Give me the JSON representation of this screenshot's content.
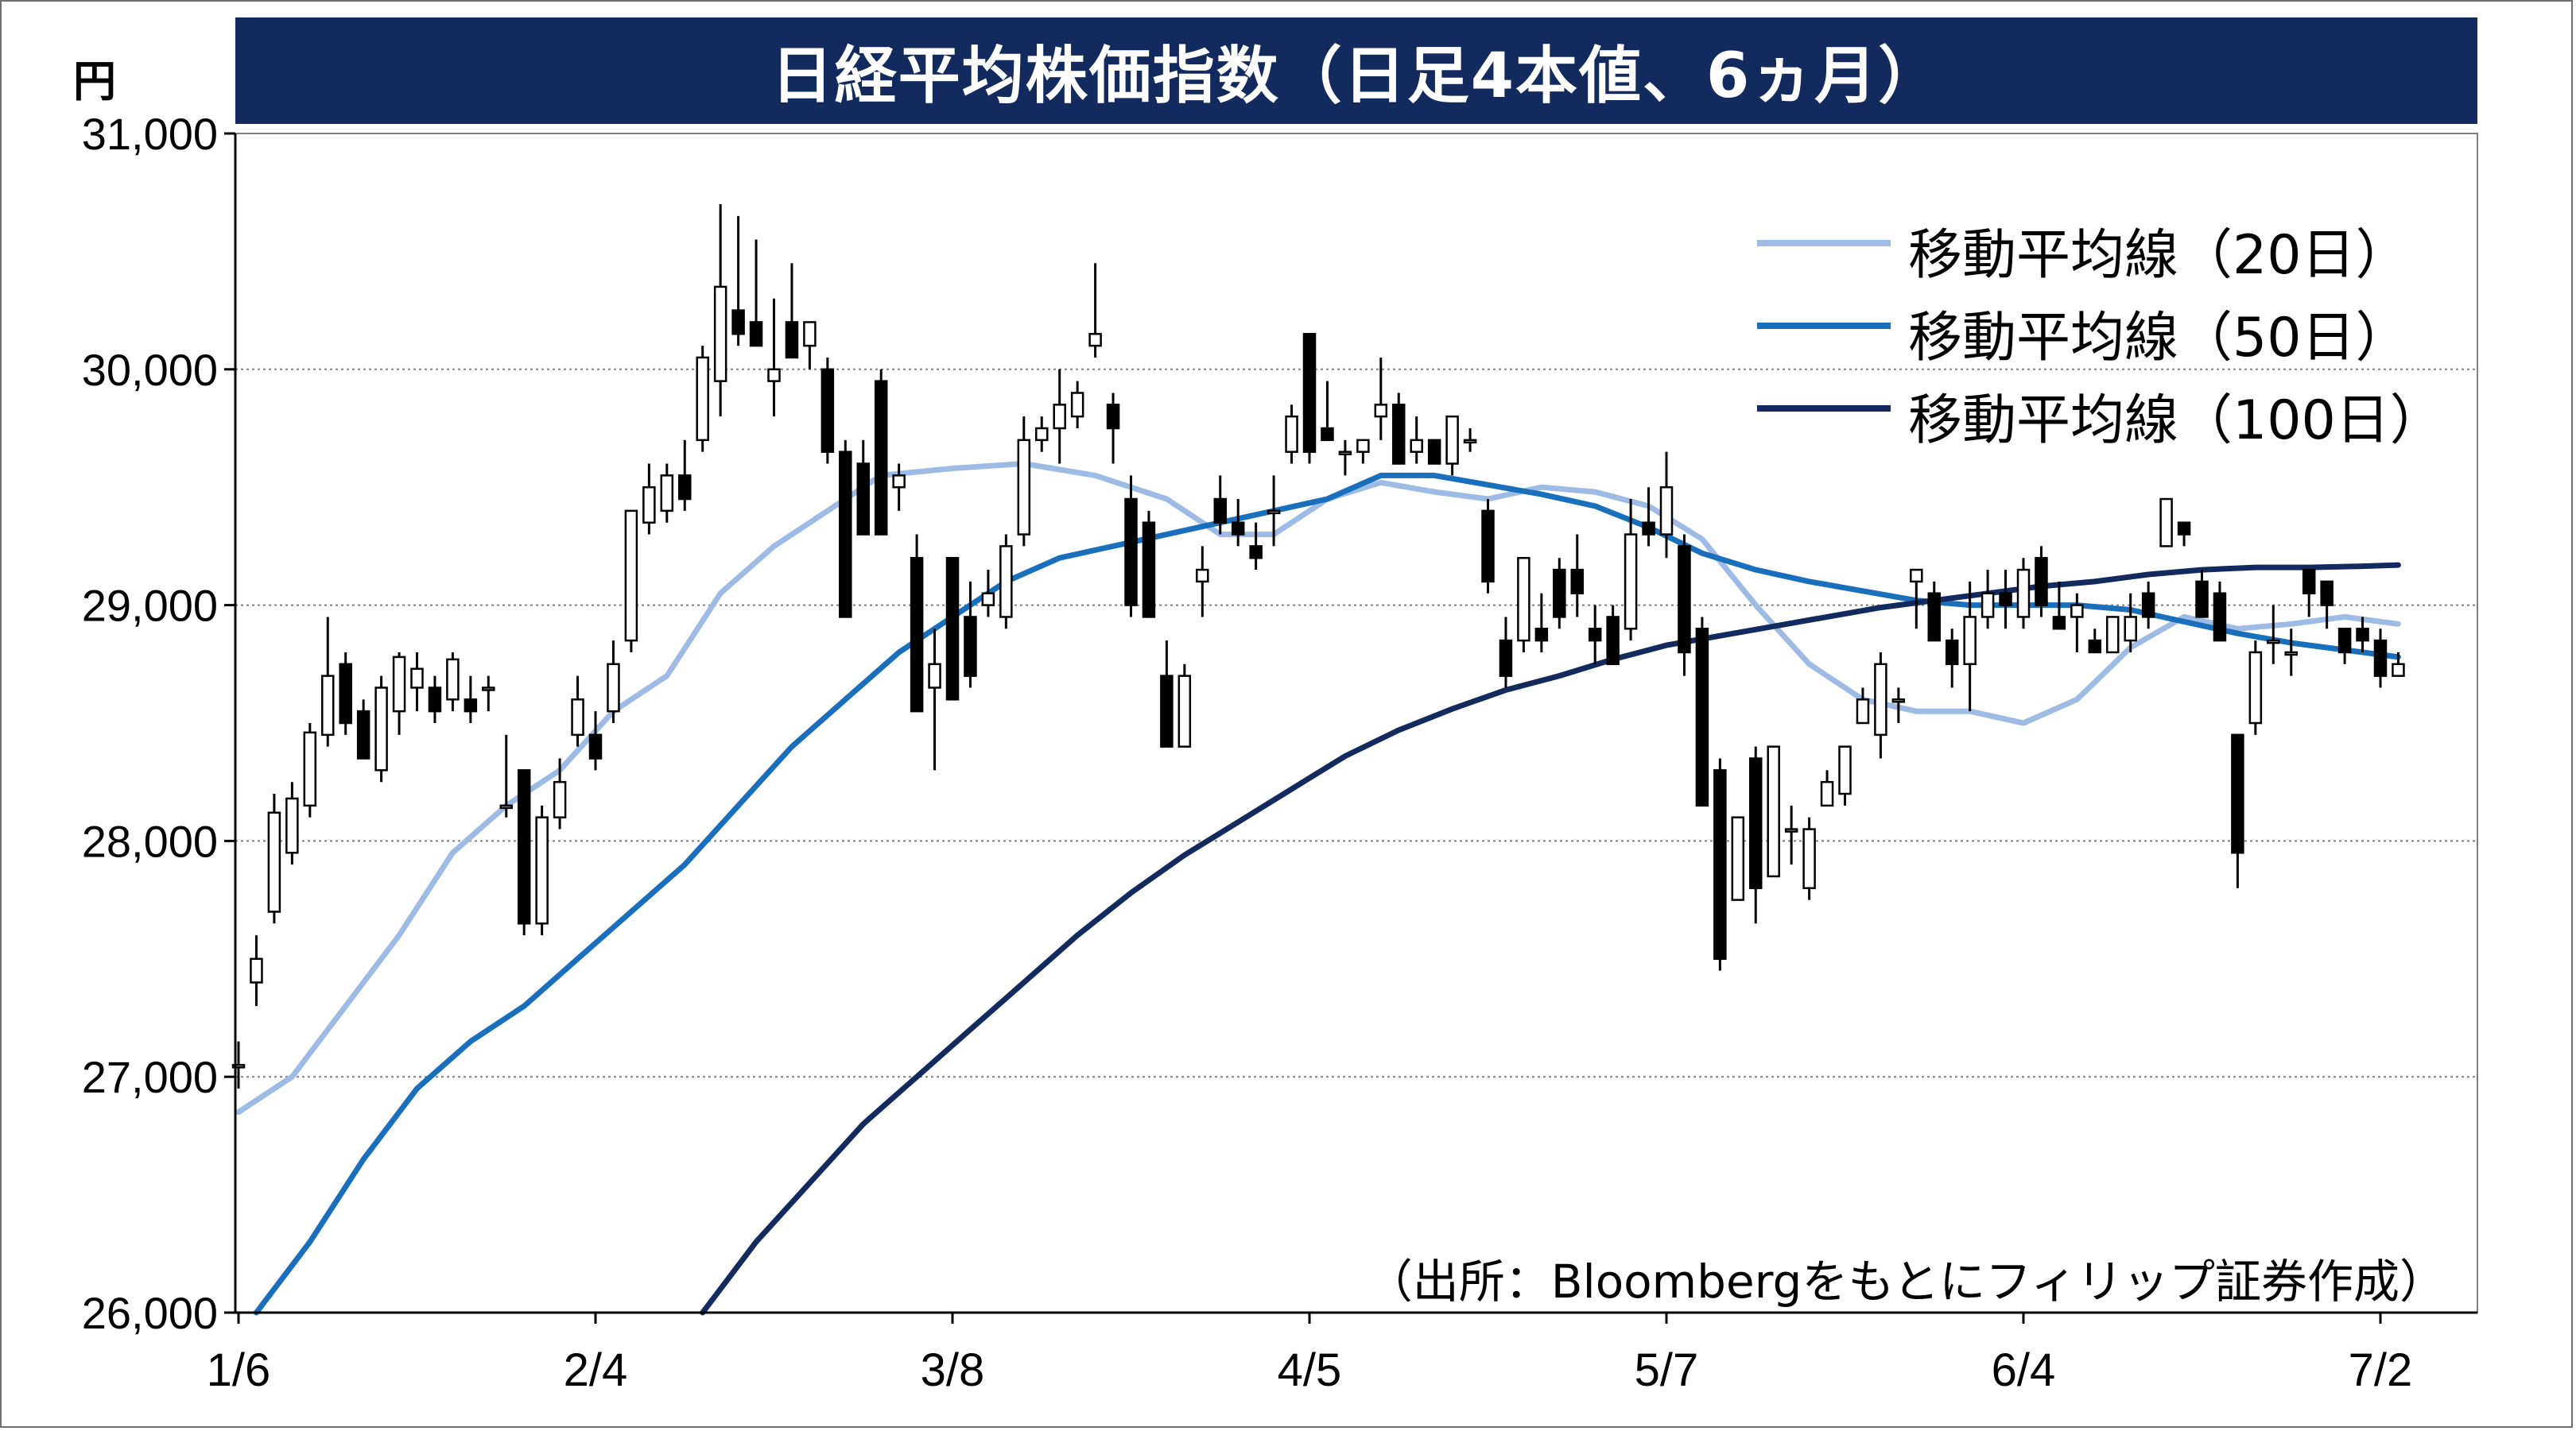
{
  "chart_data": {
    "type": "candlestick",
    "title": "日経平均株価指数（日足4本値、6ヵ月）",
    "y_unit": "円",
    "ylim": [
      26000,
      31000
    ],
    "y_ticks": [
      {
        "value": 26000,
        "label": "26,000"
      },
      {
        "value": 27000,
        "label": "27,000"
      },
      {
        "value": 28000,
        "label": "28,000"
      },
      {
        "value": 29000,
        "label": "29,000"
      },
      {
        "value": 30000,
        "label": "30,000"
      },
      {
        "value": 31000,
        "label": "31,000"
      }
    ],
    "x_ticks": [
      {
        "index": 0,
        "label": "1/6"
      },
      {
        "index": 20,
        "label": "2/4"
      },
      {
        "index": 40,
        "label": "3/8"
      },
      {
        "index": 60,
        "label": "4/5"
      },
      {
        "index": 80,
        "label": "5/7"
      },
      {
        "index": 100,
        "label": "6/4"
      },
      {
        "index": 120,
        "label": "7/2"
      }
    ],
    "grid": true,
    "legend_position": "top-right",
    "candles": [
      [
        27050,
        27150,
        26950,
        27050
      ],
      [
        27400,
        27600,
        27300,
        27500
      ],
      [
        27700,
        28200,
        27650,
        28120
      ],
      [
        27950,
        28250,
        27900,
        28180
      ],
      [
        28150,
        28500,
        28100,
        28460
      ],
      [
        28450,
        28950,
        28400,
        28700
      ],
      [
        28750,
        28800,
        28450,
        28500
      ],
      [
        28550,
        28600,
        28350,
        28350
      ],
      [
        28300,
        28700,
        28250,
        28650
      ],
      [
        28550,
        28800,
        28450,
        28780
      ],
      [
        28650,
        28800,
        28550,
        28730
      ],
      [
        28650,
        28700,
        28500,
        28550
      ],
      [
        28600,
        28800,
        28550,
        28770
      ],
      [
        28600,
        28700,
        28500,
        28550
      ],
      [
        28650,
        28700,
        28550,
        28650
      ],
      [
        28150,
        28450,
        28100,
        28150
      ],
      [
        28300,
        28300,
        27600,
        27650
      ],
      [
        27650,
        28150,
        27600,
        28100
      ],
      [
        28100,
        28350,
        28050,
        28250
      ],
      [
        28450,
        28700,
        28400,
        28600
      ],
      [
        28450,
        28550,
        28300,
        28350
      ],
      [
        28550,
        28850,
        28500,
        28750
      ],
      [
        28850,
        29400,
        28800,
        29400
      ],
      [
        29350,
        29600,
        29300,
        29500
      ],
      [
        29400,
        29600,
        29350,
        29550
      ],
      [
        29550,
        29700,
        29400,
        29450
      ],
      [
        29700,
        30100,
        29650,
        30050
      ],
      [
        29950,
        30700,
        29800,
        30350
      ],
      [
        30250,
        30650,
        30100,
        30150
      ],
      [
        30200,
        30550,
        30100,
        30100
      ],
      [
        29950,
        30300,
        29800,
        30000
      ],
      [
        30200,
        30450,
        30050,
        30050
      ],
      [
        30100,
        30200,
        30000,
        30200
      ],
      [
        30000,
        30050,
        29600,
        29650
      ],
      [
        29650,
        29700,
        28950,
        28950
      ],
      [
        29600,
        29700,
        29300,
        29300
      ],
      [
        29950,
        30000,
        29300,
        29300
      ],
      [
        29500,
        29600,
        29400,
        29550
      ],
      [
        29200,
        29300,
        28550,
        28550
      ],
      [
        28650,
        28900,
        28300,
        28750
      ],
      [
        29200,
        29200,
        28600,
        28600
      ],
      [
        28950,
        29100,
        28650,
        28700
      ],
      [
        29000,
        29150,
        28950,
        29050
      ],
      [
        28950,
        29300,
        28900,
        29250
      ],
      [
        29300,
        29800,
        29250,
        29700
      ],
      [
        29700,
        29800,
        29650,
        29750
      ],
      [
        29750,
        30000,
        29600,
        29850
      ],
      [
        29800,
        29950,
        29750,
        29900
      ],
      [
        30100,
        30450,
        30050,
        30150
      ],
      [
        29850,
        29900,
        29600,
        29750
      ],
      [
        29450,
        29550,
        28950,
        29000
      ],
      [
        29350,
        29400,
        28950,
        28950
      ],
      [
        28700,
        28850,
        28400,
        28400
      ],
      [
        28400,
        28750,
        28400,
        28700
      ],
      [
        29100,
        29250,
        28950,
        29150
      ],
      [
        29450,
        29550,
        29300,
        29350
      ],
      [
        29350,
        29450,
        29250,
        29300
      ],
      [
        29250,
        29350,
        29150,
        29200
      ],
      [
        29400,
        29550,
        29250,
        29400
      ],
      [
        29650,
        29850,
        29600,
        29800
      ],
      [
        30150,
        30150,
        29600,
        29650
      ],
      [
        29750,
        29950,
        29700,
        29700
      ],
      [
        29650,
        29700,
        29550,
        29650
      ],
      [
        29650,
        29700,
        29600,
        29700
      ],
      [
        29800,
        30050,
        29700,
        29850
      ],
      [
        29850,
        29900,
        29600,
        29600
      ],
      [
        29650,
        29800,
        29600,
        29700
      ],
      [
        29700,
        29700,
        29600,
        29600
      ],
      [
        29600,
        29800,
        29550,
        29800
      ],
      [
        29700,
        29750,
        29650,
        29700
      ],
      [
        29400,
        29450,
        29050,
        29100
      ],
      [
        28850,
        28950,
        28650,
        28700
      ],
      [
        28850,
        29200,
        28800,
        29200
      ],
      [
        28900,
        29050,
        28800,
        28850
      ],
      [
        29150,
        29200,
        28900,
        28950
      ],
      [
        29150,
        29300,
        28950,
        29050
      ],
      [
        28900,
        29000,
        28750,
        28850
      ],
      [
        28950,
        29000,
        28750,
        28750
      ],
      [
        28900,
        29450,
        28850,
        29300
      ],
      [
        29350,
        29500,
        29250,
        29300
      ],
      [
        29300,
        29650,
        29200,
        29500
      ],
      [
        29250,
        29300,
        28700,
        28800
      ],
      [
        28900,
        28950,
        28150,
        28150
      ],
      [
        28300,
        28350,
        27450,
        27500
      ],
      [
        27750,
        28050,
        27750,
        28100
      ],
      [
        28350,
        28400,
        27650,
        27800
      ],
      [
        27850,
        28400,
        27850,
        28400
      ],
      [
        28050,
        28150,
        27900,
        28050
      ],
      [
        27800,
        28100,
        27750,
        28050
      ],
      [
        28150,
        28300,
        28150,
        28250
      ],
      [
        28200,
        28400,
        28150,
        28400
      ],
      [
        28500,
        28650,
        28500,
        28600
      ],
      [
        28450,
        28800,
        28350,
        28750
      ],
      [
        28600,
        28650,
        28500,
        28600
      ],
      [
        29100,
        29150,
        28900,
        29150
      ],
      [
        29050,
        29100,
        28850,
        28850
      ],
      [
        28850,
        28900,
        28650,
        28750
      ],
      [
        28750,
        29100,
        28550,
        28950
      ],
      [
        28950,
        29150,
        28900,
        29050
      ],
      [
        29050,
        29150,
        28900,
        29000
      ],
      [
        28950,
        29200,
        28900,
        29150
      ],
      [
        29200,
        29250,
        28950,
        29000
      ],
      [
        28950,
        29100,
        28900,
        28900
      ],
      [
        28950,
        29050,
        28800,
        29000
      ],
      [
        28850,
        28900,
        28800,
        28800
      ],
      [
        28800,
        28950,
        28800,
        28950
      ],
      [
        28850,
        29050,
        28800,
        28950
      ],
      [
        29050,
        29100,
        28900,
        28950
      ],
      [
        29250,
        29450,
        29250,
        29450
      ],
      [
        29350,
        29350,
        29250,
        29300
      ],
      [
        29100,
        29150,
        28950,
        28950
      ],
      [
        29050,
        29100,
        28850,
        28850
      ],
      [
        28450,
        28450,
        27800,
        27950
      ],
      [
        28500,
        28850,
        28450,
        28800
      ],
      [
        28850,
        29000,
        28750,
        28850
      ],
      [
        28800,
        28900,
        28700,
        28800
      ],
      [
        29150,
        29150,
        28950,
        29050
      ],
      [
        29100,
        29100,
        28900,
        29000
      ],
      [
        28900,
        28900,
        28750,
        28800
      ],
      [
        28900,
        28950,
        28800,
        28850
      ],
      [
        28850,
        28900,
        28650,
        28700
      ],
      [
        28700,
        28800,
        28700,
        28750
      ]
    ],
    "series": [
      {
        "name": "移動平均線（20日）",
        "color": "#9dbbe4",
        "points": [
          [
            0,
            26850
          ],
          [
            3,
            27000
          ],
          [
            6,
            27300
          ],
          [
            9,
            27600
          ],
          [
            12,
            27950
          ],
          [
            15,
            28150
          ],
          [
            18,
            28300
          ],
          [
            21,
            28550
          ],
          [
            24,
            28700
          ],
          [
            27,
            29050
          ],
          [
            30,
            29250
          ],
          [
            33,
            29400
          ],
          [
            36,
            29550
          ],
          [
            40,
            29580
          ],
          [
            44,
            29600
          ],
          [
            48,
            29550
          ],
          [
            52,
            29450
          ],
          [
            55,
            29300
          ],
          [
            58,
            29300
          ],
          [
            61,
            29450
          ],
          [
            64,
            29520
          ],
          [
            67,
            29480
          ],
          [
            70,
            29450
          ],
          [
            73,
            29500
          ],
          [
            76,
            29480
          ],
          [
            79,
            29420
          ],
          [
            82,
            29280
          ],
          [
            85,
            29000
          ],
          [
            88,
            28750
          ],
          [
            91,
            28600
          ],
          [
            94,
            28550
          ],
          [
            97,
            28550
          ],
          [
            100,
            28500
          ],
          [
            103,
            28600
          ],
          [
            106,
            28820
          ],
          [
            109,
            28950
          ],
          [
            112,
            28900
          ],
          [
            115,
            28920
          ],
          [
            118,
            28950
          ],
          [
            121,
            28920
          ]
        ]
      },
      {
        "name": "移動平均線（50日）",
        "color": "#1a6fbd",
        "points": [
          [
            1,
            26000
          ],
          [
            4,
            26300
          ],
          [
            7,
            26650
          ],
          [
            10,
            26950
          ],
          [
            13,
            27150
          ],
          [
            16,
            27300
          ],
          [
            19,
            27500
          ],
          [
            22,
            27700
          ],
          [
            25,
            27900
          ],
          [
            28,
            28150
          ],
          [
            31,
            28400
          ],
          [
            34,
            28600
          ],
          [
            37,
            28800
          ],
          [
            40,
            28950
          ],
          [
            43,
            29100
          ],
          [
            46,
            29200
          ],
          [
            49,
            29250
          ],
          [
            52,
            29300
          ],
          [
            55,
            29350
          ],
          [
            58,
            29400
          ],
          [
            61,
            29450
          ],
          [
            64,
            29550
          ],
          [
            67,
            29550
          ],
          [
            70,
            29510
          ],
          [
            73,
            29470
          ],
          [
            76,
            29420
          ],
          [
            79,
            29330
          ],
          [
            82,
            29220
          ],
          [
            85,
            29150
          ],
          [
            88,
            29100
          ],
          [
            91,
            29060
          ],
          [
            94,
            29020
          ],
          [
            97,
            29000
          ],
          [
            100,
            29000
          ],
          [
            103,
            29000
          ],
          [
            106,
            28980
          ],
          [
            109,
            28930
          ],
          [
            112,
            28880
          ],
          [
            115,
            28840
          ],
          [
            118,
            28810
          ],
          [
            121,
            28780
          ]
        ]
      },
      {
        "name": "移動平均線（100日）",
        "color": "#122a5e",
        "points": [
          [
            26,
            26000
          ],
          [
            29,
            26300
          ],
          [
            32,
            26550
          ],
          [
            35,
            26800
          ],
          [
            38,
            27000
          ],
          [
            41,
            27200
          ],
          [
            44,
            27400
          ],
          [
            47,
            27600
          ],
          [
            50,
            27780
          ],
          [
            53,
            27940
          ],
          [
            56,
            28080
          ],
          [
            59,
            28220
          ],
          [
            62,
            28360
          ],
          [
            65,
            28470
          ],
          [
            68,
            28560
          ],
          [
            71,
            28640
          ],
          [
            74,
            28700
          ],
          [
            77,
            28770
          ],
          [
            80,
            28830
          ],
          [
            83,
            28870
          ],
          [
            86,
            28910
          ],
          [
            89,
            28950
          ],
          [
            92,
            28990
          ],
          [
            95,
            29020
          ],
          [
            98,
            29050
          ],
          [
            101,
            29080
          ],
          [
            104,
            29100
          ],
          [
            107,
            29130
          ],
          [
            110,
            29150
          ],
          [
            113,
            29160
          ],
          [
            116,
            29160
          ],
          [
            119,
            29165
          ],
          [
            121,
            29170
          ]
        ]
      }
    ],
    "source": "（出所：Bloombergをもとにフィリップ証券作成）"
  },
  "colors": {
    "title_bg": "#122a5e",
    "grid": "#808080",
    "candle_up_fill": "#ffffff",
    "candle_down_fill": "#000000"
  }
}
